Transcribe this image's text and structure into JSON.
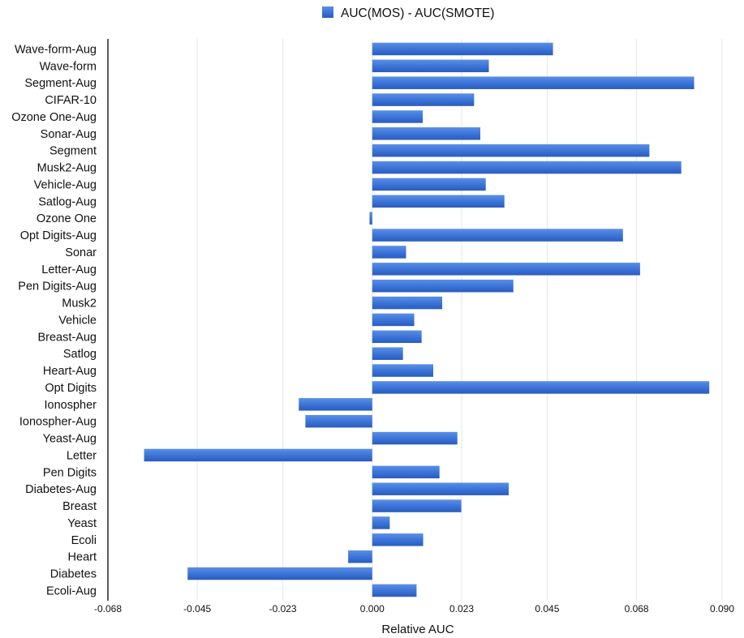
{
  "chart_data": {
    "type": "bar",
    "orientation": "horizontal",
    "categories": [
      "Wave-form-Aug",
      "Wave-form",
      "Segment-Aug",
      "CIFAR-10",
      "Ozone One-Aug",
      "Sonar-Aug",
      "Segment",
      "Musk2-Aug",
      "Vehicle-Aug",
      "Satlog-Aug",
      "Ozone One",
      "Opt Digits-Aug",
      "Sonar",
      "Letter-Aug",
      "Pen Digits-Aug",
      "Musk2",
      "Vehicle",
      "Breast-Aug",
      "Satlog",
      "Heart-Aug",
      "Opt Digits",
      "Ionospher",
      "Ionospher-Aug",
      "Yeast-Aug",
      "Letter",
      "Pen Digits",
      "Diabetes-Aug",
      "Breast",
      "Yeast",
      "Ecoli",
      "Heart",
      "Diabetes",
      "Ecoli-Aug"
    ],
    "series": [
      {
        "name": "AUC(MOS) - AUC(SMOTE)",
        "color": "#3a72d6",
        "values": [
          0.0465,
          0.03,
          0.0828,
          0.0262,
          0.013,
          0.0278,
          0.0713,
          0.0795,
          0.0292,
          0.034,
          -0.0007,
          0.0645,
          0.0087,
          0.0689,
          0.0363,
          0.018,
          0.0108,
          0.0127,
          0.0079,
          0.0157,
          0.0867,
          -0.0189,
          -0.0172,
          0.0219,
          -0.0587,
          0.0173,
          0.0351,
          0.0229,
          0.0045,
          0.0131,
          -0.0062,
          -0.0475,
          0.0114
        ]
      }
    ],
    "xlabel": "Relative AUC",
    "xlim": [
      -0.068,
      0.09
    ],
    "xticks": [
      "-0.068",
      "-0.045",
      "-0.023",
      "0.000",
      "0.023",
      "0.045",
      "0.068",
      "0.090"
    ],
    "xtick_values": [
      -0.068,
      -0.045,
      -0.023,
      0.0,
      0.023,
      0.045,
      0.068,
      0.09
    ],
    "grid": "vertical",
    "legend": "top-center"
  }
}
